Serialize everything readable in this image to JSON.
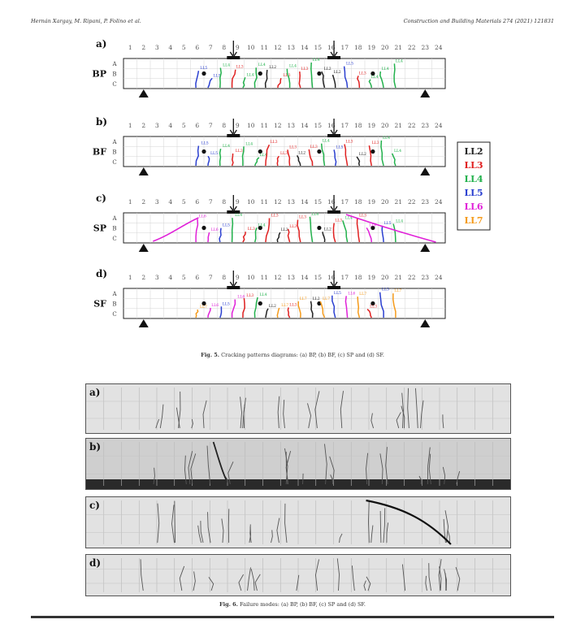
{
  "header": {
    "authors": "Hernán Xargay, M. Ripani, P. Folino et al.",
    "journal": "Construction and Building Materials 274 (2021) 121831"
  },
  "fig5": {
    "caption_label": "Fig. 5.",
    "caption_text": "Cracking patterns diagrams: (a) BP, (b) BF, (c) SP and (d) SF.",
    "column_numbers": [
      "1",
      "2",
      "3",
      "4",
      "5",
      "6",
      "7",
      "8",
      "9",
      "10",
      "11",
      "12",
      "13",
      "14",
      "15",
      "16",
      "17",
      "18",
      "19",
      "20",
      "21",
      "22",
      "23",
      "24"
    ],
    "row_labels": [
      "A",
      "B",
      "C"
    ],
    "panels": [
      {
        "letter": "a)",
        "name": "BP",
        "crack_tags": [
          "LL5",
          "LL5",
          "LL4",
          "LL3",
          "LL4",
          "LL4",
          "LL2",
          "LL3",
          "LL4",
          "LL3",
          "LL4",
          "LL2",
          "LL2",
          "LL5",
          "LL3",
          "LL4",
          "LL4",
          "LL4"
        ]
      },
      {
        "letter": "b)",
        "name": "BF",
        "crack_tags": [
          "LL5",
          "LL5",
          "LL4",
          "LL3",
          "LL4",
          "LL4",
          "LL3",
          "LL3",
          "LL3",
          "LL2",
          "LL3",
          "LL4",
          "LL5",
          "LL3",
          "LL2",
          "LL3",
          "LL4",
          "LL4"
        ]
      },
      {
        "letter": "c)",
        "name": "SP",
        "crack_tags": [
          "LL6",
          "LL6",
          "LL5",
          "LL4",
          "LL3",
          "LL4",
          "LL3",
          "LL2",
          "LL3",
          "LL3",
          "LL4",
          "LL2",
          "LL3",
          "LL4",
          "LL3",
          "LL6",
          "LL5",
          "LL4"
        ]
      },
      {
        "letter": "d)",
        "name": "SF",
        "crack_tags": [
          "LL7",
          "LL6",
          "LL5",
          "LL6",
          "LL3",
          "LL4",
          "LL2",
          "LL7",
          "LL3",
          "LL7",
          "LL2",
          "LL7",
          "LL5",
          "LL6",
          "LL7",
          "LL3",
          "LL5",
          "LL7"
        ]
      }
    ],
    "legend": [
      {
        "label": "LL2",
        "color": "#222222"
      },
      {
        "label": "LL3",
        "color": "#e02020"
      },
      {
        "label": "LL4",
        "color": "#22b14c"
      },
      {
        "label": "LL5",
        "color": "#2a3fd0"
      },
      {
        "label": "LL6",
        "color": "#e020d8"
      },
      {
        "label": "LL7",
        "color": "#f59a1a"
      }
    ]
  },
  "fig6": {
    "caption_label": "Fig. 6.",
    "caption_text": "Failure modes: (a) BP, (b) BF, (c) SP and (d) SF.",
    "photo_labels": [
      "a)",
      "b)",
      "c)",
      "d)"
    ]
  }
}
